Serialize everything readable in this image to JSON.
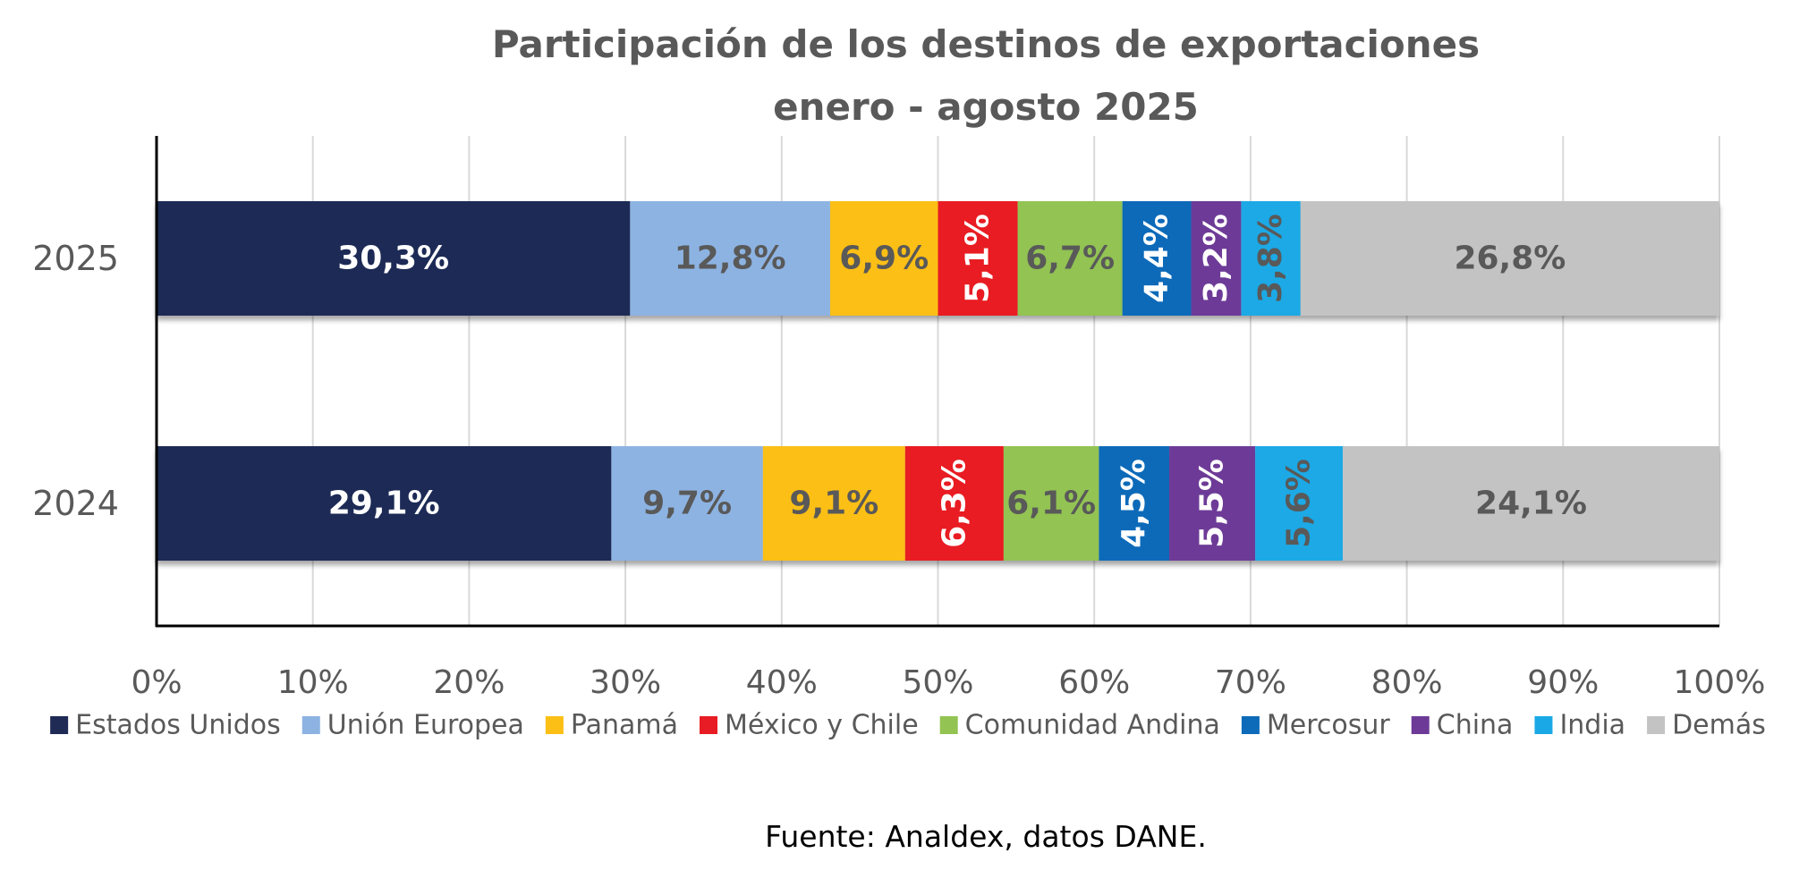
{
  "chart_data": {
    "type": "bar",
    "orientation": "horizontal",
    "stacked": true,
    "title": "Participación de los destinos de exportaciones",
    "subtitle": "enero - agosto 2025",
    "categories": [
      "2025",
      "2024"
    ],
    "xlim": [
      0,
      100
    ],
    "x_ticks": [
      "0%",
      "10%",
      "20%",
      "30%",
      "40%",
      "50%",
      "60%",
      "70%",
      "80%",
      "90%",
      "100%"
    ],
    "grid": true,
    "legend_position": "bottom",
    "series": [
      {
        "name": "Estados Unidos",
        "color": "#1f2a55",
        "label_color": "#ffffff",
        "values": [
          30.3,
          29.1
        ],
        "labels": [
          "30,3%",
          "29,1%"
        ],
        "rotated": [
          false,
          false
        ]
      },
      {
        "name": "Unión Europea",
        "color": "#8db3e2",
        "label_color": "#595959",
        "values": [
          12.8,
          9.7
        ],
        "labels": [
          "12,8%",
          "9,7%"
        ],
        "rotated": [
          false,
          false
        ]
      },
      {
        "name": "Panamá",
        "color": "#fcbf15",
        "label_color": "#595959",
        "values": [
          6.9,
          9.1
        ],
        "labels": [
          "6,9%",
          "9,1%"
        ],
        "rotated": [
          false,
          false
        ]
      },
      {
        "name": "México y Chile",
        "color": "#e81c24",
        "label_color": "#ffffff",
        "values": [
          5.1,
          6.3
        ],
        "labels": [
          "5,1%",
          "6,3%"
        ],
        "rotated": [
          true,
          true
        ]
      },
      {
        "name": "Comunidad Andina",
        "color": "#92c353",
        "label_color": "#595959",
        "values": [
          6.7,
          6.1
        ],
        "labels": [
          "6,7%",
          "6,1%"
        ],
        "rotated": [
          false,
          false
        ]
      },
      {
        "name": "Mercosur",
        "color": "#0d6bb9",
        "label_color": "#ffffff",
        "values": [
          4.4,
          4.5
        ],
        "labels": [
          "4,4%",
          "4,5%"
        ],
        "rotated": [
          true,
          true
        ]
      },
      {
        "name": "China",
        "color": "#6d3b97",
        "label_color": "#ffffff",
        "values": [
          3.2,
          5.5
        ],
        "labels": [
          "3,2%",
          "5,5%"
        ],
        "rotated": [
          true,
          true
        ]
      },
      {
        "name": "India",
        "color": "#1aa9e6",
        "label_color": "#595959",
        "values": [
          3.8,
          5.6
        ],
        "labels": [
          "3,8%",
          "5,6%"
        ],
        "rotated": [
          true,
          true
        ]
      },
      {
        "name": "Demás",
        "color": "#c3c3c3",
        "label_color": "#595959",
        "values": [
          26.8,
          24.1
        ],
        "labels": [
          "26,8%",
          "24,1%"
        ],
        "rotated": [
          false,
          false
        ]
      }
    ],
    "source": "Fuente: Analdex, datos DANE."
  }
}
